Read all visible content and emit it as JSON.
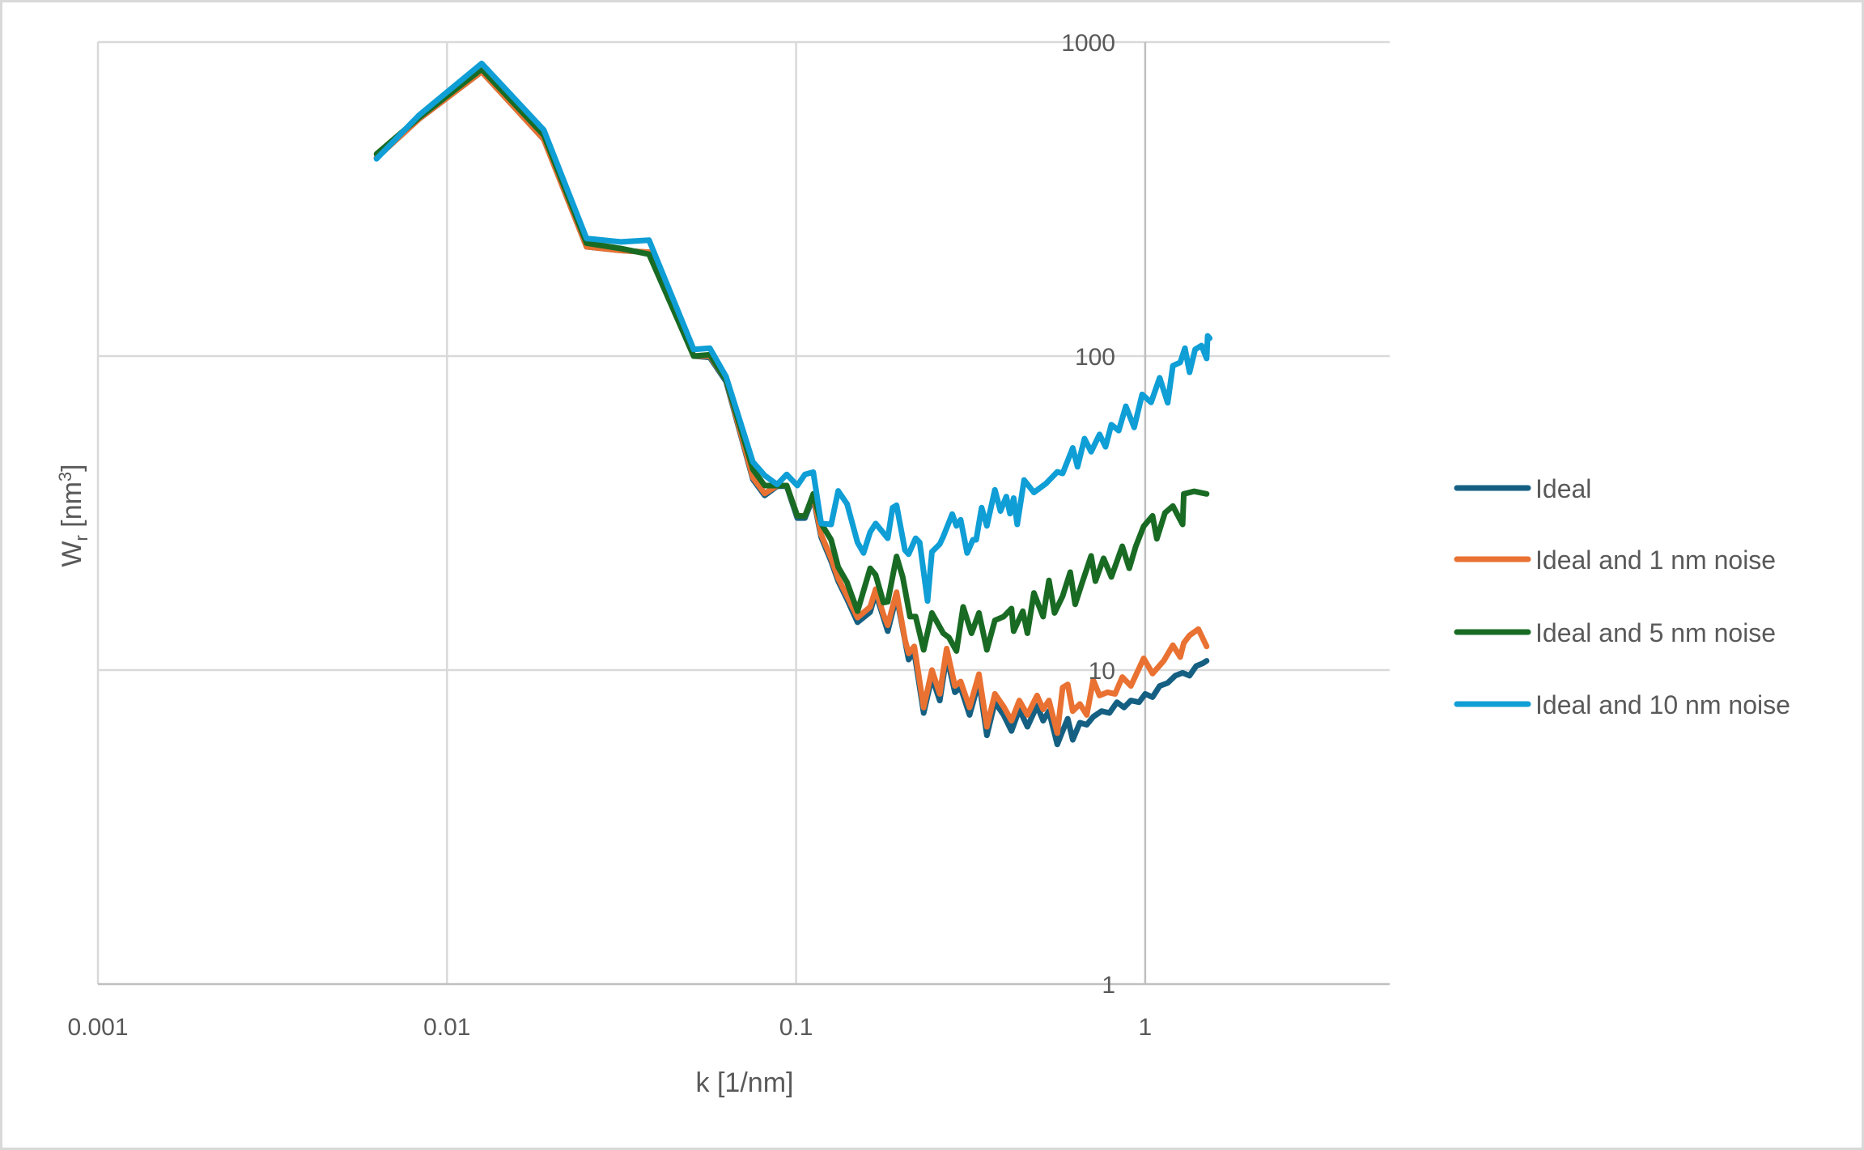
{
  "chart_data": {
    "type": "line",
    "title": "",
    "xlabel": "k [1/nm]",
    "ylabel_main": "W",
    "ylabel_sub": "r",
    "ylabel_unit_open": " [nm",
    "ylabel_unit_sup": "3",
    "ylabel_unit_close": "]",
    "ylabel": "Wr [nm3]",
    "xscale": "log",
    "yscale": "log",
    "xlim": [
      0.001,
      5
    ],
    "ylim": [
      1,
      1000
    ],
    "grid": true,
    "legend_position": "right",
    "x_ticks": [
      {
        "value": 0.001,
        "label": "0.001"
      },
      {
        "value": 0.01,
        "label": "0.01"
      },
      {
        "value": 0.1,
        "label": "0.1"
      },
      {
        "value": 1,
        "label": "1"
      }
    ],
    "y_ticks": [
      {
        "value": 1,
        "label": "1"
      },
      {
        "value": 10,
        "label": "10"
      },
      {
        "value": 100,
        "label": "100"
      },
      {
        "value": 1000,
        "label": "1000"
      }
    ],
    "series": [
      {
        "name": "Ideal",
        "color": "#156082",
        "points": [
          [
            0.00628,
            428
          ],
          [
            0.00832,
            569
          ],
          [
            0.01257,
            805
          ],
          [
            0.01894,
            490
          ],
          [
            0.0251,
            223
          ],
          [
            0.0315,
            217
          ],
          [
            0.0379,
            214
          ],
          [
            0.0509,
            100
          ],
          [
            0.0566,
            99
          ],
          [
            0.063,
            83
          ],
          [
            0.0752,
            40.5
          ],
          [
            0.0813,
            36
          ],
          [
            0.0882,
            38.5
          ],
          [
            0.094,
            38.5
          ],
          [
            0.1008,
            30.5
          ],
          [
            0.106,
            30.5
          ],
          [
            0.112,
            35.5
          ],
          [
            0.118,
            26.5
          ],
          [
            0.126,
            22.2
          ],
          [
            0.132,
            19.2
          ],
          [
            0.14,
            16.8
          ],
          [
            0.15,
            14.2
          ],
          [
            0.163,
            15.3
          ],
          [
            0.169,
            17.6
          ],
          [
            0.183,
            13.3
          ],
          [
            0.194,
            17.2
          ],
          [
            0.21,
            10.8
          ],
          [
            0.218,
            11.4
          ],
          [
            0.232,
            7.3
          ],
          [
            0.245,
            9.5
          ],
          [
            0.258,
            8.0
          ],
          [
            0.27,
            11.1
          ],
          [
            0.285,
            8.5
          ],
          [
            0.296,
            8.8
          ],
          [
            0.314,
            7.2
          ],
          [
            0.334,
            9.2
          ],
          [
            0.352,
            6.2
          ],
          [
            0.371,
            7.9
          ],
          [
            0.393,
            7.2
          ],
          [
            0.414,
            6.4
          ],
          [
            0.436,
            7.5
          ],
          [
            0.46,
            6.6
          ],
          [
            0.49,
            7.7
          ],
          [
            0.51,
            6.9
          ],
          [
            0.53,
            7.4
          ],
          [
            0.56,
            5.8
          ],
          [
            0.58,
            6.4
          ],
          [
            0.6,
            7.0
          ],
          [
            0.62,
            6.0
          ],
          [
            0.65,
            6.8
          ],
          [
            0.68,
            6.7
          ],
          [
            0.71,
            7.1
          ],
          [
            0.75,
            7.4
          ],
          [
            0.79,
            7.3
          ],
          [
            0.83,
            7.9
          ],
          [
            0.87,
            7.6
          ],
          [
            0.91,
            8.0
          ],
          [
            0.96,
            7.9
          ],
          [
            1.0,
            8.4
          ],
          [
            1.05,
            8.2
          ],
          [
            1.1,
            8.9
          ],
          [
            1.16,
            9.1
          ],
          [
            1.22,
            9.6
          ],
          [
            1.28,
            9.8
          ],
          [
            1.34,
            9.6
          ],
          [
            1.4,
            10.3
          ],
          [
            1.46,
            10.5
          ],
          [
            1.5,
            10.7
          ]
        ]
      },
      {
        "name": "Ideal and 1 nm noise",
        "color": "#e97132",
        "points": [
          [
            0.00628,
            428
          ],
          [
            0.00832,
            569
          ],
          [
            0.01257,
            805
          ],
          [
            0.01894,
            490
          ],
          [
            0.0251,
            223
          ],
          [
            0.0315,
            217
          ],
          [
            0.0379,
            214
          ],
          [
            0.0509,
            100
          ],
          [
            0.0566,
            100
          ],
          [
            0.063,
            84
          ],
          [
            0.0752,
            41
          ],
          [
            0.0813,
            36.5
          ],
          [
            0.0882,
            38.7
          ],
          [
            0.094,
            38.7
          ],
          [
            0.1008,
            31
          ],
          [
            0.106,
            31
          ],
          [
            0.112,
            36
          ],
          [
            0.118,
            27
          ],
          [
            0.126,
            22.7
          ],
          [
            0.132,
            19.6
          ],
          [
            0.14,
            17.2
          ],
          [
            0.15,
            14.7
          ],
          [
            0.163,
            15.9
          ],
          [
            0.169,
            18.1
          ],
          [
            0.178,
            15.0
          ],
          [
            0.183,
            13.9
          ],
          [
            0.194,
            17.7
          ],
          [
            0.205,
            12.5
          ],
          [
            0.21,
            11.3
          ],
          [
            0.218,
            11.9
          ],
          [
            0.232,
            7.6
          ],
          [
            0.245,
            10
          ],
          [
            0.258,
            8.4
          ],
          [
            0.27,
            11.7
          ],
          [
            0.285,
            8.9
          ],
          [
            0.296,
            9.2
          ],
          [
            0.314,
            7.6
          ],
          [
            0.334,
            9.7
          ],
          [
            0.352,
            6.6
          ],
          [
            0.371,
            8.4
          ],
          [
            0.393,
            7.65
          ],
          [
            0.414,
            6.9
          ],
          [
            0.436,
            8.0
          ],
          [
            0.46,
            7.2
          ],
          [
            0.49,
            8.3
          ],
          [
            0.51,
            7.5
          ],
          [
            0.53,
            8.0
          ],
          [
            0.56,
            6.3
          ],
          [
            0.58,
            8.8
          ],
          [
            0.6,
            9.0
          ],
          [
            0.62,
            7.4
          ],
          [
            0.65,
            7.8
          ],
          [
            0.68,
            7.2
          ],
          [
            0.71,
            9.3
          ],
          [
            0.74,
            8.3
          ],
          [
            0.78,
            8.5
          ],
          [
            0.82,
            8.4
          ],
          [
            0.86,
            9.5
          ],
          [
            0.91,
            8.9
          ],
          [
            0.99,
            10.9
          ],
          [
            1.05,
            9.75
          ],
          [
            1.13,
            10.7
          ],
          [
            1.2,
            12.0
          ],
          [
            1.26,
            11.0
          ],
          [
            1.29,
            12.2
          ],
          [
            1.34,
            12.9
          ],
          [
            1.42,
            13.5
          ],
          [
            1.5,
            11.9
          ]
        ]
      },
      {
        "name": "Ideal and 5 nm noise",
        "color": "#196b24",
        "points": [
          [
            0.00628,
            440
          ],
          [
            0.00832,
            575
          ],
          [
            0.01257,
            820
          ],
          [
            0.01894,
            505
          ],
          [
            0.0251,
            229
          ],
          [
            0.0315,
            220
          ],
          [
            0.0379,
            211
          ],
          [
            0.0509,
            100
          ],
          [
            0.0566,
            101
          ],
          [
            0.063,
            84
          ],
          [
            0.0752,
            43.6
          ],
          [
            0.0813,
            38.7
          ],
          [
            0.0882,
            38.7
          ],
          [
            0.094,
            38.7
          ],
          [
            0.1008,
            31
          ],
          [
            0.106,
            30.9
          ],
          [
            0.112,
            36.4
          ],
          [
            0.118,
            29.3
          ],
          [
            0.126,
            26
          ],
          [
            0.132,
            21.3
          ],
          [
            0.14,
            19
          ],
          [
            0.15,
            15.4
          ],
          [
            0.163,
            21.1
          ],
          [
            0.169,
            20.1
          ],
          [
            0.178,
            16.4
          ],
          [
            0.183,
            16.5
          ],
          [
            0.194,
            23
          ],
          [
            0.202,
            19.8
          ],
          [
            0.212,
            14.8
          ],
          [
            0.22,
            14.8
          ],
          [
            0.232,
            11.6
          ],
          [
            0.245,
            15.2
          ],
          [
            0.264,
            13.1
          ],
          [
            0.274,
            12.7
          ],
          [
            0.288,
            11.5
          ],
          [
            0.301,
            15.9
          ],
          [
            0.318,
            13.1
          ],
          [
            0.334,
            15.2
          ],
          [
            0.352,
            11.6
          ],
          [
            0.371,
            14.4
          ],
          [
            0.393,
            14.8
          ],
          [
            0.414,
            15.7
          ],
          [
            0.42,
            13.3
          ],
          [
            0.446,
            15.4
          ],
          [
            0.46,
            13.1
          ],
          [
            0.48,
            17.6
          ],
          [
            0.51,
            14.8
          ],
          [
            0.53,
            19.3
          ],
          [
            0.55,
            15.2
          ],
          [
            0.58,
            17.2
          ],
          [
            0.61,
            20.5
          ],
          [
            0.63,
            16.2
          ],
          [
            0.66,
            19
          ],
          [
            0.7,
            23.1
          ],
          [
            0.72,
            19.2
          ],
          [
            0.76,
            22.7
          ],
          [
            0.8,
            19.8
          ],
          [
            0.86,
            24.8
          ],
          [
            0.9,
            21.1
          ],
          [
            0.94,
            24.8
          ],
          [
            0.99,
            28.7
          ],
          [
            1.05,
            31
          ],
          [
            1.08,
            26.2
          ],
          [
            1.14,
            31.7
          ],
          [
            1.2,
            33.3
          ],
          [
            1.28,
            29.1
          ],
          [
            1.29,
            36.4
          ],
          [
            1.38,
            37.1
          ],
          [
            1.5,
            36.4
          ]
        ]
      },
      {
        "name": "Ideal and 10 nm noise",
        "color": "#0f9ed5",
        "points": [
          [
            0.00628,
            425
          ],
          [
            0.00832,
            585
          ],
          [
            0.01257,
            855
          ],
          [
            0.01894,
            525
          ],
          [
            0.0251,
            237
          ],
          [
            0.0315,
            231
          ],
          [
            0.0379,
            234
          ],
          [
            0.0509,
            105
          ],
          [
            0.0566,
            106
          ],
          [
            0.063,
            86
          ],
          [
            0.0752,
            46
          ],
          [
            0.0813,
            41.7
          ],
          [
            0.0882,
            39
          ],
          [
            0.094,
            42
          ],
          [
            0.1008,
            38.7
          ],
          [
            0.106,
            42
          ],
          [
            0.112,
            42.7
          ],
          [
            0.118,
            29.3
          ],
          [
            0.126,
            29.1
          ],
          [
            0.132,
            37.2
          ],
          [
            0.14,
            33.8
          ],
          [
            0.15,
            25.5
          ],
          [
            0.156,
            23.6
          ],
          [
            0.163,
            27.5
          ],
          [
            0.169,
            29.3
          ],
          [
            0.183,
            26.3
          ],
          [
            0.189,
            32.9
          ],
          [
            0.194,
            33.5
          ],
          [
            0.205,
            24.1
          ],
          [
            0.21,
            23.4
          ],
          [
            0.22,
            26.3
          ],
          [
            0.226,
            25.5
          ],
          [
            0.238,
            16.6
          ],
          [
            0.245,
            23.8
          ],
          [
            0.258,
            25.2
          ],
          [
            0.264,
            26.6
          ],
          [
            0.28,
            31.4
          ],
          [
            0.288,
            28.8
          ],
          [
            0.296,
            30.1
          ],
          [
            0.309,
            23.6
          ],
          [
            0.321,
            26
          ],
          [
            0.328,
            26
          ],
          [
            0.34,
            32.9
          ],
          [
            0.352,
            28.8
          ],
          [
            0.371,
            37.5
          ],
          [
            0.385,
            32.1
          ],
          [
            0.4,
            35.7
          ],
          [
            0.41,
            31.5
          ],
          [
            0.42,
            35.3
          ],
          [
            0.43,
            29.1
          ],
          [
            0.45,
            40.3
          ],
          [
            0.48,
            36.8
          ],
          [
            0.52,
            39.3
          ],
          [
            0.56,
            42.8
          ],
          [
            0.58,
            42.3
          ],
          [
            0.62,
            51
          ],
          [
            0.64,
            44.4
          ],
          [
            0.67,
            54.6
          ],
          [
            0.7,
            49.6
          ],
          [
            0.74,
            56.3
          ],
          [
            0.77,
            51.4
          ],
          [
            0.8,
            60.5
          ],
          [
            0.84,
            57.9
          ],
          [
            0.88,
            69.2
          ],
          [
            0.93,
            59.3
          ],
          [
            0.98,
            75.5
          ],
          [
            1.04,
            71.2
          ],
          [
            1.1,
            85.3
          ],
          [
            1.16,
            71
          ],
          [
            1.2,
            93.2
          ],
          [
            1.26,
            95.5
          ],
          [
            1.3,
            106
          ],
          [
            1.34,
            88.8
          ],
          [
            1.39,
            105
          ],
          [
            1.45,
            108
          ],
          [
            1.5,
            98.3
          ],
          [
            1.51,
            116
          ],
          [
            1.53,
            114
          ]
        ]
      }
    ]
  },
  "legend": {
    "items": [
      {
        "label": "Ideal",
        "color": "#156082"
      },
      {
        "label": "Ideal and 1 nm noise",
        "color": "#e97132"
      },
      {
        "label": "Ideal and 5 nm noise",
        "color": "#196b24"
      },
      {
        "label": "Ideal and 10 nm noise",
        "color": "#0f9ed5"
      }
    ]
  },
  "colors": {
    "gridline": "#d9d9d9",
    "axis": "#bfbfbf",
    "text": "#595959",
    "frame": "#d9d9d9"
  }
}
